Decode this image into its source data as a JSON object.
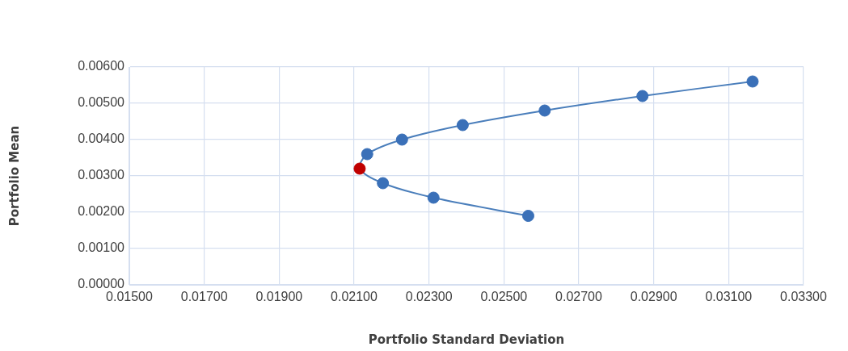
{
  "chart_data": {
    "type": "line",
    "xlabel": "Portfolio Standard Deviation",
    "ylabel": "Portfolio Mean",
    "xlim": [
      0.015,
      0.033
    ],
    "xticks": [
      {
        "value": 0.015,
        "label": "0.01500"
      },
      {
        "value": 0.017,
        "label": "0.01700"
      },
      {
        "value": 0.019,
        "label": "0.01900"
      },
      {
        "value": 0.021,
        "label": "0.02100"
      },
      {
        "value": 0.023,
        "label": "0.02300"
      },
      {
        "value": 0.025,
        "label": "0.02500"
      },
      {
        "value": 0.027,
        "label": "0.02700"
      },
      {
        "value": 0.029,
        "label": "0.02900"
      },
      {
        "value": 0.031,
        "label": "0.03100"
      },
      {
        "value": 0.033,
        "label": "0.03300"
      }
    ],
    "ylim": [
      0,
      0.006
    ],
    "yticks": [
      {
        "value": 0,
        "label": "0.00000"
      },
      {
        "value": 0.001,
        "label": "0.00100"
      },
      {
        "value": 0.002,
        "label": "0.00200"
      },
      {
        "value": 0.003,
        "label": "0.00300"
      },
      {
        "value": 0.004,
        "label": "0.00400"
      },
      {
        "value": 0.005,
        "label": "0.00500"
      },
      {
        "value": 0.006,
        "label": "0.00600"
      }
    ],
    "grid": true,
    "legend": false,
    "marker": "circle",
    "line_style": "solid",
    "series": [
      {
        "color": "#4a7ebb",
        "x": [
          0.02565,
          0.02312,
          0.02177,
          0.02115,
          0.02135,
          0.02228,
          0.0239,
          0.02609,
          0.0287,
          0.03164
        ],
        "values": [
          0.0019,
          0.0024,
          0.0028,
          0.0032,
          0.0036,
          0.004,
          0.0044,
          0.0048,
          0.0052,
          0.0056
        ],
        "colors": [
          "#3a70b8",
          "#3a70b8",
          "#3a70b8",
          "#c00000",
          "#3a70b8",
          "#3a70b8",
          "#3a70b8",
          "#3a70b8",
          "#3a70b8",
          "#3a70b8"
        ]
      }
    ]
  }
}
